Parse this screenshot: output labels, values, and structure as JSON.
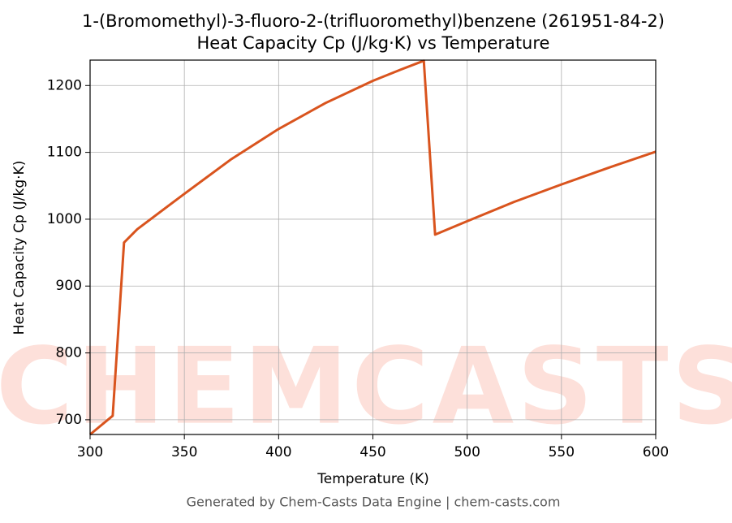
{
  "chart_data": {
    "type": "line",
    "title": "1-(Bromomethyl)-3-fluoro-2-(trifluoromethyl)benzene (261951-84-2)",
    "subtitle": "Heat Capacity Cp (J/kg·K) vs Temperature",
    "x_label": "Temperature (K)",
    "y_label": "Heat Capacity Cp (J/kg·K)",
    "footer": "Generated by Chem-Casts Data Engine | chem-casts.com",
    "watermark": "CHEMCASTS",
    "x": [
      300,
      312,
      318,
      325,
      350,
      375,
      400,
      425,
      450,
      465,
      477,
      483,
      500,
      525,
      550,
      575,
      600
    ],
    "series": [
      {
        "name": "Heat Capacity Cp",
        "color": "#d9541e",
        "values": [
          678,
          706,
          965,
          985,
          1038,
          1090,
          1135,
          1174,
          1207,
          1224,
          1237,
          977,
          997,
          1026,
          1052,
          1077,
          1101
        ]
      }
    ],
    "xlim": [
      300,
      600
    ],
    "ylim": [
      678,
      1238
    ],
    "xticks": [
      300,
      350,
      400,
      450,
      500,
      550,
      600
    ],
    "yticks": [
      700,
      800,
      900,
      1000,
      1100,
      1200
    ],
    "grid": true
  }
}
